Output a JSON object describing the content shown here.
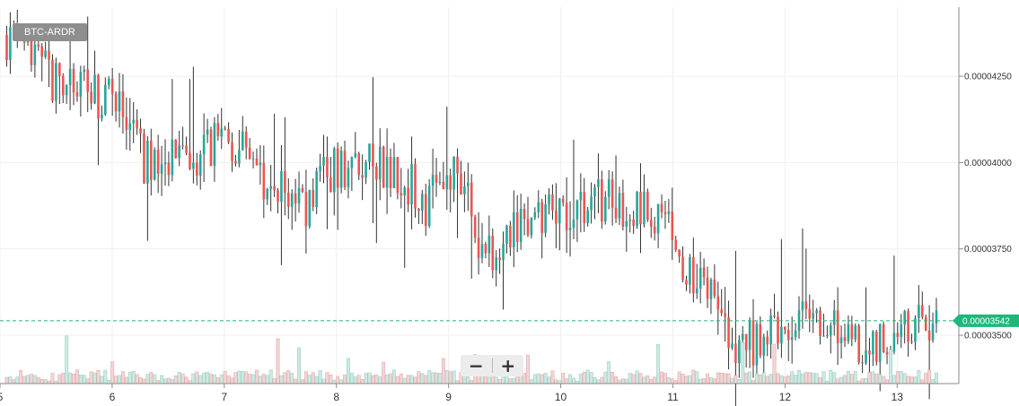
{
  "pair_label": "BTC-ARDR",
  "zoom": {
    "minus_label": "−",
    "plus_label": "+"
  },
  "colors": {
    "up": "#26a69a",
    "down": "#ef5350",
    "wick": "#333333",
    "grid": "#efefef",
    "axis": "#8a8a8a",
    "last_price": "#1db87a"
  },
  "chart_data": {
    "type": "candlestick",
    "title": "BTC-ARDR",
    "x_ticks": [
      "5",
      "6",
      "7",
      "8",
      "9",
      "10",
      "11",
      "12",
      "13"
    ],
    "xlim": [
      5.0,
      13.55
    ],
    "y_ticks": [
      "0.00004250",
      "0.00004000",
      "0.00003750",
      "0.00003500"
    ],
    "ylim": [
      3.36e-05,
      4.45e-05
    ],
    "last_price": "0.00003542",
    "grid": true,
    "key_points": [
      {
        "x": 5.05,
        "close": 4.37e-05
      },
      {
        "x": 5.45,
        "close": 4.24e-05
      },
      {
        "x": 6.0,
        "close": 4.18e-05
      },
      {
        "x": 6.3,
        "close": 4e-05
      },
      {
        "x": 6.8,
        "close": 4.03e-05
      },
      {
        "x": 7.0,
        "close": 4.09e-05
      },
      {
        "x": 7.3,
        "close": 3.97e-05
      },
      {
        "x": 7.7,
        "close": 3.87e-05
      },
      {
        "x": 7.95,
        "close": 3.98e-05
      },
      {
        "x": 8.25,
        "close": 4.01e-05
      },
      {
        "x": 8.55,
        "close": 3.98e-05
      },
      {
        "x": 8.8,
        "close": 3.88e-05
      },
      {
        "x": 8.95,
        "close": 3.98e-05
      },
      {
        "x": 9.2,
        "close": 3.9e-05
      },
      {
        "x": 9.3,
        "close": 3.73e-05
      },
      {
        "x": 9.65,
        "close": 3.82e-05
      },
      {
        "x": 10.0,
        "close": 3.87e-05
      },
      {
        "x": 10.35,
        "close": 3.89e-05
      },
      {
        "x": 10.75,
        "close": 3.87e-05
      },
      {
        "x": 11.0,
        "close": 3.8e-05
      },
      {
        "x": 11.1,
        "close": 3.67e-05
      },
      {
        "x": 11.3,
        "close": 3.64e-05
      },
      {
        "x": 11.45,
        "close": 3.49e-05
      },
      {
        "x": 11.65,
        "close": 3.47e-05
      },
      {
        "x": 12.0,
        "close": 3.52e-05
      },
      {
        "x": 12.4,
        "close": 3.55e-05
      },
      {
        "x": 12.75,
        "close": 3.45e-05
      },
      {
        "x": 13.0,
        "close": 3.5e-05
      },
      {
        "x": 13.35,
        "close": 3.54e-05
      }
    ],
    "volume_ylim": [
      0,
      1.0
    ]
  }
}
